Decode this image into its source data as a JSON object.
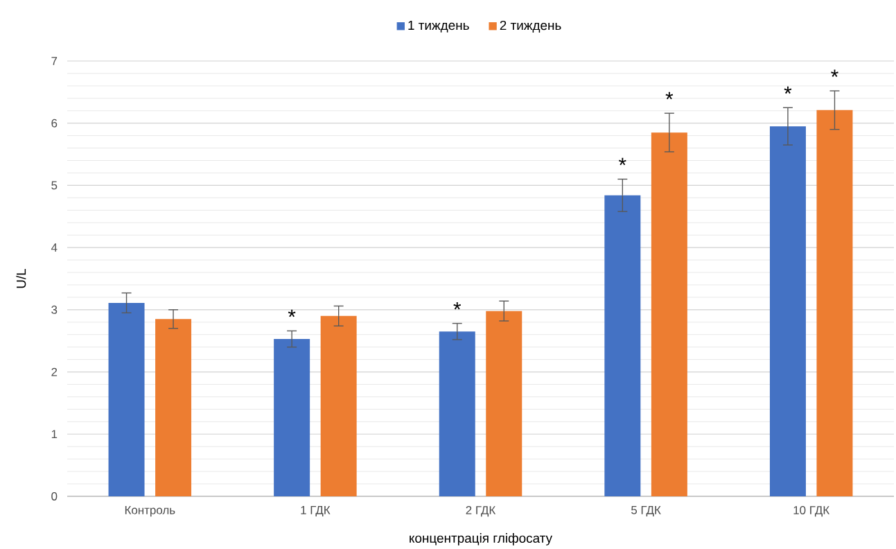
{
  "chart_data": {
    "type": "bar",
    "xlabel": "концентрація гліфосату",
    "ylabel": "U/L",
    "categories": [
      "Контроль",
      "1 ГДК",
      "2 ГДК",
      "5  ГДК",
      "10 ГДК"
    ],
    "series": [
      {
        "name": "1 тиждень",
        "color": "#4472c4",
        "values": [
          3.11,
          2.53,
          2.65,
          4.84,
          5.95
        ],
        "errors": [
          0.16,
          0.13,
          0.13,
          0.26,
          0.3
        ]
      },
      {
        "name": "2 тиждень",
        "color": "#ed7d31",
        "values": [
          2.85,
          2.9,
          2.98,
          5.85,
          6.21
        ],
        "errors": [
          0.15,
          0.16,
          0.16,
          0.31,
          0.31
        ]
      }
    ],
    "ylim": [
      0,
      7
    ],
    "yticks": [
      0,
      1,
      2,
      3,
      4,
      5,
      6,
      7
    ],
    "grid": "y",
    "legend": "top",
    "annotations": [
      "*",
      "*",
      "*",
      "*",
      "*",
      "*"
    ]
  }
}
